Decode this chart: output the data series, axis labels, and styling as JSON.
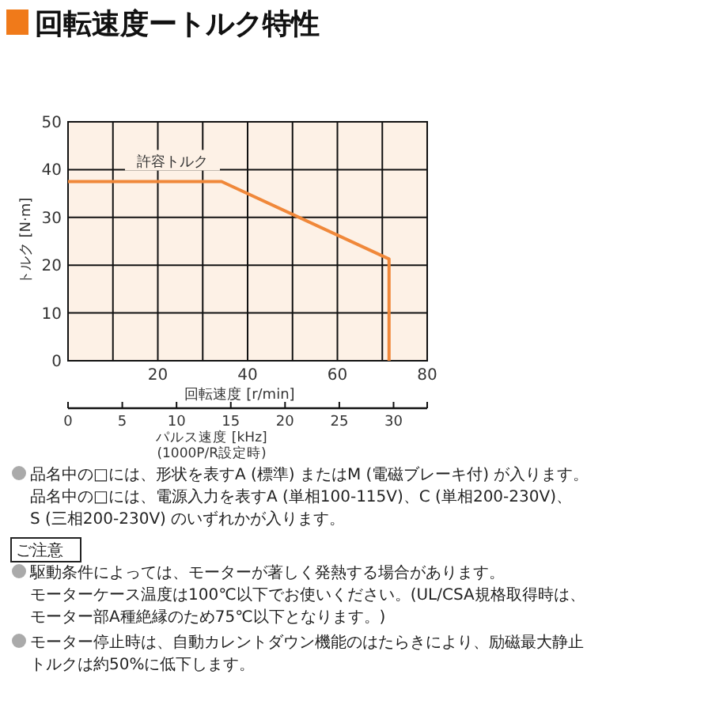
{
  "chart_data": {
    "type": "line",
    "title": "回転速度ートルク特性",
    "x": [
      0,
      34.2,
      71.5,
      71.5
    ],
    "series": [
      {
        "name": "許容トルク",
        "color": "#f0883a",
        "values": [
          37.5,
          37.5,
          21.3,
          0
        ]
      }
    ],
    "xlim": [
      0,
      80
    ],
    "xticks": [
      {
        "value": 0,
        "label": null
      },
      {
        "value": 10,
        "label": null
      },
      20,
      {
        "value": 30,
        "label": null
      },
      40,
      {
        "value": 50,
        "label": null
      },
      60,
      {
        "value": 70,
        "label": null
      },
      80
    ],
    "ylim": [
      0,
      50
    ],
    "yticks": [
      0,
      10,
      20,
      30,
      40,
      50
    ],
    "x2lim": [
      0,
      33.1
    ],
    "x2ticks": [
      0,
      5,
      10,
      15,
      20,
      25,
      30
    ],
    "xlabel": "回転速度 [r/min]",
    "ylabel": "トルク [N·m]",
    "x2label": "パルス速度 [kHz]\n(1000P/R設定時)",
    "grid": true,
    "legend": false,
    "marker": "none",
    "line_style": "solid",
    "annotations": [
      "品名中の□には、形状を表すA (標準) またはM (電磁ブレーキ付) が入ります。品名中の□には、電源入力を表すA (単相100-115V)、C (単相200-230V)、S (三相200-230V) のいずれかが入ります。",
      "ご注意",
      "駆動条件によっては、モーターが著しく発熱する場合があります。モーターケース温度は100℃以下でお使いください。(UL/CSA規格取得時は、モーター部A種絶縁のため75℃以下となります。)",
      "モーター停止時は、自動カレントダウン機能のはたらきにより、励磁最大静止トルクは約50%に低下します。"
    ]
  }
}
